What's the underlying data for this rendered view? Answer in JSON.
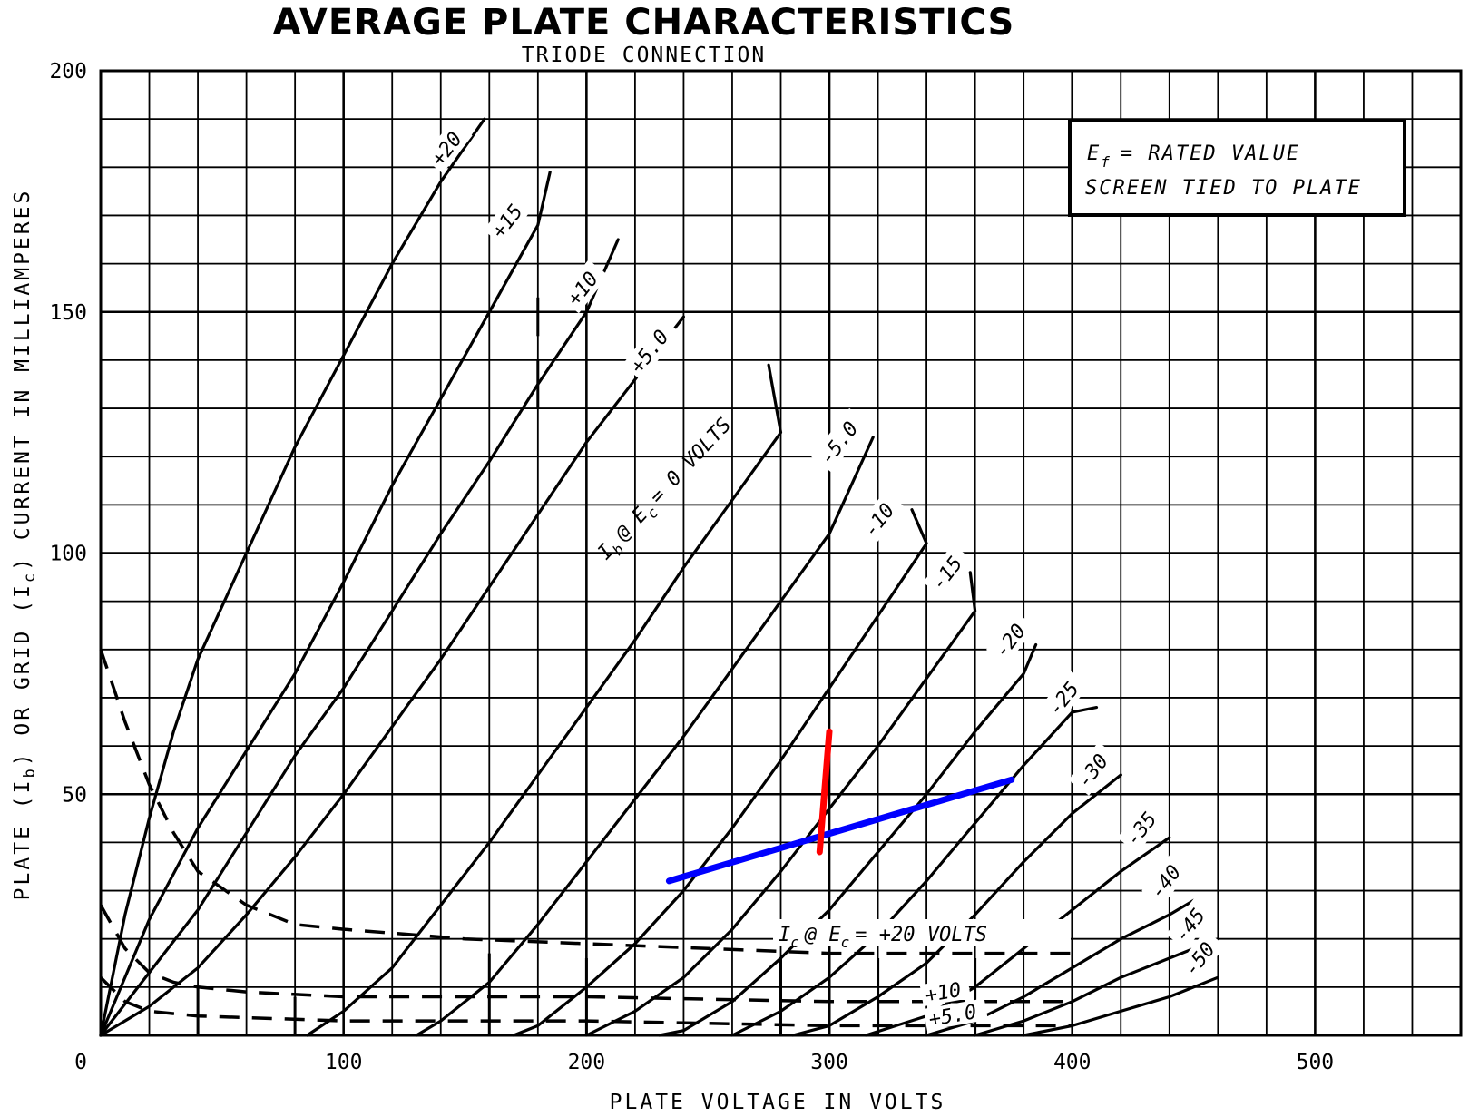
{
  "chart_data": {
    "type": "line",
    "title": "AVERAGE PLATE CHARACTERISTICS",
    "subtitle": "TRIODE CONNECTION",
    "xlabel": "PLATE VOLTAGE IN VOLTS",
    "ylabel_parts": [
      "PLATE (I",
      "b",
      ") OR GRID (I",
      "c",
      ") CURRENT IN MILLIAMPERES"
    ],
    "xlim": [
      0,
      560
    ],
    "ylim": [
      0,
      200
    ],
    "x_ticks": [
      "0",
      "100",
      "200",
      "300",
      "400",
      "500"
    ],
    "y_ticks": [
      "50",
      "100",
      "150",
      "200"
    ],
    "grid": true,
    "note": {
      "line1": "E",
      "line1_sub": "f",
      "line1_rest": "= RATED VALUE",
      "line2": "SCREEN TIED TO PLATE"
    },
    "plate_label": {
      "pre": "I",
      "sub1": "b",
      "mid": "@ E",
      "sub2": "c",
      "post": "= 0 VOLTS"
    },
    "grid_label": {
      "pre": "I",
      "sub1": "c",
      "mid": "@ E",
      "sub2": "c",
      "post": "= +20 VOLTS"
    },
    "plate_series": [
      {
        "name": "+20",
        "points": [
          [
            0,
            0
          ],
          [
            10,
            25
          ],
          [
            20,
            45
          ],
          [
            30,
            63
          ],
          [
            40,
            78
          ],
          [
            60,
            100
          ],
          [
            80,
            122
          ],
          [
            100,
            141
          ],
          [
            120,
            160
          ],
          [
            140,
            177
          ],
          [
            158,
            190
          ]
        ]
      },
      {
        "name": "+15",
        "points": [
          [
            0,
            0
          ],
          [
            20,
            24
          ],
          [
            40,
            43
          ],
          [
            60,
            59
          ],
          [
            80,
            75
          ],
          [
            100,
            94
          ],
          [
            120,
            114
          ],
          [
            140,
            132
          ],
          [
            160,
            150
          ],
          [
            180,
            168
          ],
          [
            185,
            179
          ]
        ]
      },
      {
        "name": "+10",
        "points": [
          [
            0,
            0
          ],
          [
            20,
            13
          ],
          [
            40,
            26
          ],
          [
            60,
            42
          ],
          [
            80,
            58
          ],
          [
            100,
            72
          ],
          [
            120,
            88
          ],
          [
            140,
            104
          ],
          [
            160,
            119
          ],
          [
            180,
            135
          ],
          [
            200,
            150
          ],
          [
            213,
            165
          ]
        ]
      },
      {
        "name": "+5.0",
        "points": [
          [
            0,
            0
          ],
          [
            20,
            6
          ],
          [
            40,
            14
          ],
          [
            60,
            25
          ],
          [
            80,
            37
          ],
          [
            100,
            50
          ],
          [
            120,
            64
          ],
          [
            140,
            78
          ],
          [
            160,
            93
          ],
          [
            180,
            108
          ],
          [
            200,
            123
          ],
          [
            220,
            136
          ],
          [
            240,
            149
          ]
        ]
      },
      {
        "name": "0",
        "points": [
          [
            85,
            0
          ],
          [
            100,
            5
          ],
          [
            120,
            14
          ],
          [
            140,
            27
          ],
          [
            160,
            40
          ],
          [
            180,
            54
          ],
          [
            200,
            68
          ],
          [
            220,
            82
          ],
          [
            240,
            97
          ],
          [
            260,
            111
          ],
          [
            280,
            125
          ],
          [
            275,
            139
          ]
        ]
      },
      {
        "name": "-5.0",
        "points": [
          [
            130,
            0
          ],
          [
            140,
            3
          ],
          [
            160,
            11
          ],
          [
            180,
            23
          ],
          [
            200,
            36
          ],
          [
            220,
            49
          ],
          [
            240,
            62
          ],
          [
            260,
            76
          ],
          [
            280,
            90
          ],
          [
            300,
            104
          ],
          [
            318,
            124
          ]
        ]
      },
      {
        "name": "-10",
        "points": [
          [
            170,
            0
          ],
          [
            180,
            2
          ],
          [
            200,
            10
          ],
          [
            220,
            19
          ],
          [
            240,
            30
          ],
          [
            260,
            43
          ],
          [
            280,
            57
          ],
          [
            300,
            72
          ],
          [
            320,
            87
          ],
          [
            340,
            102
          ],
          [
            334,
            109
          ]
        ]
      },
      {
        "name": "-15",
        "points": [
          [
            200,
            0
          ],
          [
            220,
            5
          ],
          [
            240,
            12
          ],
          [
            260,
            22
          ],
          [
            280,
            34
          ],
          [
            300,
            47
          ],
          [
            320,
            60
          ],
          [
            340,
            74
          ],
          [
            360,
            88
          ],
          [
            358,
            96
          ]
        ]
      },
      {
        "name": "-20",
        "points": [
          [
            230,
            0
          ],
          [
            240,
            1
          ],
          [
            260,
            7
          ],
          [
            280,
            16
          ],
          [
            300,
            26
          ],
          [
            320,
            38
          ],
          [
            340,
            50
          ],
          [
            360,
            63
          ],
          [
            380,
            75
          ],
          [
            385,
            81
          ]
        ]
      },
      {
        "name": "-25",
        "points": [
          [
            260,
            0
          ],
          [
            280,
            5
          ],
          [
            300,
            12
          ],
          [
            320,
            21
          ],
          [
            340,
            32
          ],
          [
            360,
            44
          ],
          [
            380,
            56
          ],
          [
            400,
            67
          ],
          [
            410,
            68
          ]
        ]
      },
      {
        "name": "-30",
        "points": [
          [
            285,
            0
          ],
          [
            300,
            2
          ],
          [
            320,
            8
          ],
          [
            340,
            15
          ],
          [
            360,
            25
          ],
          [
            380,
            36
          ],
          [
            400,
            46
          ],
          [
            420,
            54
          ]
        ]
      },
      {
        "name": "-35",
        "points": [
          [
            315,
            0
          ],
          [
            340,
            4
          ],
          [
            360,
            10
          ],
          [
            380,
            18
          ],
          [
            400,
            26
          ],
          [
            420,
            34
          ],
          [
            440,
            41
          ]
        ]
      },
      {
        "name": "-40",
        "points": [
          [
            340,
            0
          ],
          [
            360,
            3
          ],
          [
            380,
            8
          ],
          [
            400,
            14
          ],
          [
            420,
            20
          ],
          [
            440,
            25
          ],
          [
            450,
            28
          ]
        ]
      },
      {
        "name": "-45",
        "points": [
          [
            360,
            0
          ],
          [
            380,
            3
          ],
          [
            400,
            7
          ],
          [
            420,
            12
          ],
          [
            440,
            16
          ],
          [
            460,
            20
          ]
        ]
      },
      {
        "name": "-50",
        "points": [
          [
            380,
            0
          ],
          [
            400,
            2
          ],
          [
            420,
            5
          ],
          [
            440,
            8
          ],
          [
            460,
            12
          ]
        ]
      }
    ],
    "grid_current_series": [
      {
        "name": "+20",
        "points": [
          [
            0,
            80
          ],
          [
            10,
            65
          ],
          [
            20,
            52
          ],
          [
            30,
            42
          ],
          [
            40,
            34
          ],
          [
            60,
            27
          ],
          [
            80,
            23
          ],
          [
            100,
            22
          ],
          [
            150,
            20
          ],
          [
            200,
            19
          ],
          [
            250,
            18
          ],
          [
            300,
            17
          ],
          [
            400,
            17
          ]
        ]
      },
      {
        "name": "+10",
        "points": [
          [
            0,
            27
          ],
          [
            10,
            18
          ],
          [
            20,
            13
          ],
          [
            30,
            11
          ],
          [
            40,
            10
          ],
          [
            60,
            9
          ],
          [
            100,
            8
          ],
          [
            200,
            8
          ],
          [
            300,
            7
          ],
          [
            400,
            7
          ]
        ]
      },
      {
        "name": "+5.0",
        "points": [
          [
            0,
            12
          ],
          [
            10,
            7
          ],
          [
            20,
            5
          ],
          [
            40,
            4
          ],
          [
            100,
            3
          ],
          [
            200,
            3
          ],
          [
            300,
            2
          ],
          [
            400,
            2
          ]
        ]
      }
    ],
    "short_ticks": [
      [
        [
          40,
          0
        ],
        [
          40,
          10
        ]
      ],
      [
        [
          80,
          0
        ],
        [
          80,
          8
        ]
      ],
      [
        [
          160,
          0
        ],
        [
          160,
          17
        ]
      ],
      [
        [
          200,
          0
        ],
        [
          200,
          16
        ]
      ],
      [
        [
          280,
          0
        ],
        [
          280,
          16
        ]
      ],
      [
        [
          300,
          0
        ],
        [
          300,
          24
        ]
      ],
      [
        [
          320,
          0
        ],
        [
          320,
          16
        ]
      ],
      [
        [
          360,
          0
        ],
        [
          360,
          16
        ]
      ],
      [
        [
          180,
          145
        ],
        [
          180,
          153
        ]
      ],
      [
        [
          180,
          130
        ],
        [
          180,
          140
        ]
      ]
    ],
    "series_label_positions": {
      "+20": [
        140,
        180
      ],
      "+15": [
        165,
        165
      ],
      "+10": [
        196,
        151
      ],
      "+5.0": [
        222,
        137
      ],
      "0": [
        267,
        133
      ],
      "-5.0": [
        300,
        118
      ],
      "-10": [
        318,
        103
      ],
      "-15": [
        346,
        92
      ],
      "-20": [
        372,
        78
      ],
      "-25": [
        394,
        66
      ],
      "-30": [
        406,
        51
      ],
      "-35": [
        426,
        39
      ],
      "-40": [
        436,
        28
      ],
      "-45": [
        446,
        19
      ],
      "-50": [
        450,
        12
      ]
    },
    "overlay_lines": [
      {
        "name": "blue-load-line",
        "color": "#0000ff",
        "points": [
          [
            234,
            32
          ],
          [
            375,
            53
          ]
        ]
      },
      {
        "name": "red-line",
        "color": "#ff0000",
        "points": [
          [
            300,
            63
          ],
          [
            296,
            38
          ]
        ]
      }
    ]
  }
}
